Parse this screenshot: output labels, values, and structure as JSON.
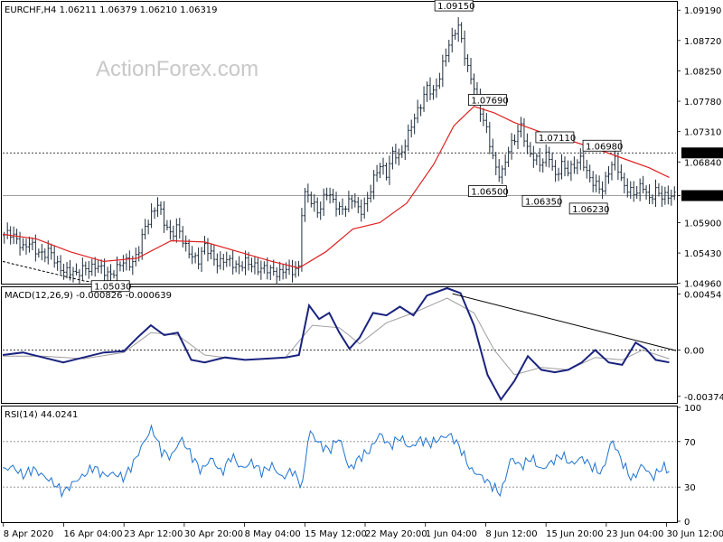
{
  "watermark": "ActionForex.com",
  "colors": {
    "price_bars": "#1e2d3d",
    "ma_line": "#e02020",
    "ma_long": "#000000",
    "macd_line": "#1a237e",
    "signal_line": "#9e9e9e",
    "rsi_line": "#1e73d0",
    "level_line": "#000000",
    "last_price_bg": "#000000",
    "last_price_fg": "#ffffff"
  },
  "chart_data": [
    {
      "panel": "price",
      "type": "ohlc",
      "header": "EURCHF,H4  1.06211 1.06379 1.06210 1.06319",
      "ylim": [
        1.0497,
        1.09305
      ],
      "y_ticks": [
        "1.09190",
        "1.08720",
        "1.08250",
        "1.07780",
        "1.07310",
        "1.06840",
        "1.06319",
        "1.05900",
        "1.05430",
        "1.04960"
      ],
      "level_lines": [
        1.0698,
        1.06319
      ],
      "level_labels": [
        "1.06980",
        "1.06319"
      ],
      "annotations": [
        {
          "text": "1.05030",
          "t": 0.16,
          "y": 1.0503
        },
        {
          "text": "1.09150",
          "t": 0.67,
          "y": 1.0915
        },
        {
          "text": "1.07690",
          "t": 0.72,
          "y": 1.0769
        },
        {
          "text": "1.06500",
          "t": 0.72,
          "y": 1.065
        },
        {
          "text": "1.06350",
          "t": 0.8,
          "y": 1.0635
        },
        {
          "text": "1.07110",
          "t": 0.82,
          "y": 1.0711
        },
        {
          "text": "1.06980",
          "t": 0.89,
          "y": 1.0698
        },
        {
          "text": "1.06230",
          "t": 0.87,
          "y": 1.0623
        }
      ],
      "close_path": [
        [
          0.0,
          1.057
        ],
        [
          0.01,
          1.0575
        ],
        [
          0.02,
          1.0565
        ],
        [
          0.03,
          1.055
        ],
        [
          0.04,
          1.056
        ],
        [
          0.05,
          1.0545
        ],
        [
          0.06,
          1.054
        ],
        [
          0.07,
          1.0548
        ],
        [
          0.08,
          1.0525
        ],
        [
          0.09,
          1.0515
        ],
        [
          0.1,
          1.0515
        ],
        [
          0.11,
          1.051
        ],
        [
          0.12,
          1.052
        ],
        [
          0.13,
          1.0518
        ],
        [
          0.14,
          1.0525
        ],
        [
          0.15,
          1.0515
        ],
        [
          0.16,
          1.0508
        ],
        [
          0.17,
          1.052
        ],
        [
          0.18,
          1.0532
        ],
        [
          0.19,
          1.0525
        ],
        [
          0.2,
          1.054
        ],
        [
          0.21,
          1.058
        ],
        [
          0.22,
          1.06
        ],
        [
          0.23,
          1.062
        ],
        [
          0.24,
          1.059
        ],
        [
          0.25,
          1.057
        ],
        [
          0.26,
          1.0585
        ],
        [
          0.27,
          1.0555
        ],
        [
          0.28,
          1.054
        ],
        [
          0.29,
          1.053
        ],
        [
          0.3,
          1.0555
        ],
        [
          0.31,
          1.054
        ],
        [
          0.32,
          1.0525
        ],
        [
          0.33,
          1.0535
        ],
        [
          0.34,
          1.0528
        ],
        [
          0.35,
          1.052
        ],
        [
          0.36,
          1.053
        ],
        [
          0.37,
          1.0525
        ],
        [
          0.38,
          1.0518
        ],
        [
          0.39,
          1.052
        ],
        [
          0.4,
          1.0515
        ],
        [
          0.41,
          1.051
        ],
        [
          0.42,
          1.052
        ],
        [
          0.43,
          1.0515
        ],
        [
          0.44,
          1.052
        ],
        [
          0.443,
          1.06
        ],
        [
          0.45,
          1.064
        ],
        [
          0.46,
          1.062
        ],
        [
          0.47,
          1.0605
        ],
        [
          0.48,
          1.064
        ],
        [
          0.49,
          1.0625
        ],
        [
          0.5,
          1.061
        ],
        [
          0.51,
          1.0615
        ],
        [
          0.52,
          1.063
        ],
        [
          0.53,
          1.0605
        ],
        [
          0.54,
          1.062
        ],
        [
          0.55,
          1.0655
        ],
        [
          0.56,
          1.068
        ],
        [
          0.57,
          1.0665
        ],
        [
          0.58,
          1.07
        ],
        [
          0.59,
          1.069
        ],
        [
          0.6,
          1.072
        ],
        [
          0.61,
          1.075
        ],
        [
          0.62,
          1.077
        ],
        [
          0.63,
          1.08
        ],
        [
          0.64,
          1.079
        ],
        [
          0.65,
          1.082
        ],
        [
          0.66,
          1.086
        ],
        [
          0.67,
          1.088
        ],
        [
          0.675,
          1.09
        ],
        [
          0.68,
          1.088
        ],
        [
          0.69,
          1.083
        ],
        [
          0.7,
          1.08
        ],
        [
          0.71,
          1.076
        ],
        [
          0.72,
          1.073
        ],
        [
          0.73,
          1.068
        ],
        [
          0.74,
          1.066
        ],
        [
          0.75,
          1.07
        ],
        [
          0.76,
          1.072
        ],
        [
          0.77,
          1.074
        ],
        [
          0.78,
          1.07
        ],
        [
          0.79,
          1.069
        ],
        [
          0.8,
          1.068
        ],
        [
          0.81,
          1.07
        ],
        [
          0.82,
          1.066
        ],
        [
          0.83,
          1.068
        ],
        [
          0.84,
          1.067
        ],
        [
          0.85,
          1.068
        ],
        [
          0.86,
          1.069
        ],
        [
          0.87,
          1.066
        ],
        [
          0.88,
          1.065
        ],
        [
          0.89,
          1.064
        ],
        [
          0.9,
          1.067
        ],
        [
          0.91,
          1.069
        ],
        [
          0.92,
          1.065
        ],
        [
          0.93,
          1.064
        ],
        [
          0.94,
          1.0635
        ],
        [
          0.95,
          1.065
        ],
        [
          0.96,
          1.0625
        ],
        [
          0.97,
          1.064
        ],
        [
          0.98,
          1.063
        ],
        [
          0.99,
          1.0632
        ]
      ],
      "ma_fast": [
        [
          0.0,
          1.0572
        ],
        [
          0.05,
          1.0565
        ],
        [
          0.1,
          1.0545
        ],
        [
          0.15,
          1.053
        ],
        [
          0.2,
          1.0535
        ],
        [
          0.25,
          1.0562
        ],
        [
          0.3,
          1.056
        ],
        [
          0.35,
          1.0545
        ],
        [
          0.4,
          1.053
        ],
        [
          0.44,
          1.052
        ],
        [
          0.48,
          1.0545
        ],
        [
          0.52,
          1.058
        ],
        [
          0.56,
          1.059
        ],
        [
          0.6,
          1.062
        ],
        [
          0.64,
          1.068
        ],
        [
          0.67,
          1.074
        ],
        [
          0.7,
          1.077
        ],
        [
          0.73,
          1.076
        ],
        [
          0.76,
          1.0745
        ],
        [
          0.8,
          1.073
        ],
        [
          0.84,
          1.0718
        ],
        [
          0.88,
          1.0705
        ],
        [
          0.92,
          1.069
        ],
        [
          0.96,
          1.0675
        ],
        [
          0.99,
          1.066
        ]
      ],
      "ma_slow": [
        [
          0.0,
          1.053
        ],
        [
          0.04,
          1.052
        ],
        [
          0.08,
          1.051
        ],
        [
          0.12,
          1.05
        ],
        [
          0.16,
          1.0495
        ]
      ]
    },
    {
      "panel": "macd",
      "type": "line",
      "header": "MACD(12,26,9) -0.000826 -0.000639",
      "ylim": [
        -0.0042,
        0.005
      ],
      "y_ticks": [
        "0.00454",
        "0.00",
        "-0.003745"
      ],
      "series": [
        {
          "values": [
            [
              0.0,
              -0.0004
            ],
            [
              0.03,
              -0.0002
            ],
            [
              0.06,
              -0.0006
            ],
            [
              0.09,
              -0.001
            ],
            [
              0.12,
              -0.0006
            ],
            [
              0.15,
              -0.0002
            ],
            [
              0.18,
              -0.0001
            ],
            [
              0.2,
              0.001
            ],
            [
              0.22,
              0.002
            ],
            [
              0.24,
              0.0012
            ],
            [
              0.26,
              0.0014
            ],
            [
              0.28,
              -0.0008
            ],
            [
              0.3,
              -0.001
            ],
            [
              0.33,
              -0.0006
            ],
            [
              0.36,
              -0.0008
            ],
            [
              0.39,
              -0.0007
            ],
            [
              0.42,
              -0.0006
            ],
            [
              0.44,
              -0.0004
            ],
            [
              0.455,
              0.0036
            ],
            [
              0.47,
              0.0025
            ],
            [
              0.485,
              0.003
            ],
            [
              0.5,
              0.0014
            ],
            [
              0.515,
              0.0001
            ],
            [
              0.53,
              0.001
            ],
            [
              0.55,
              0.003
            ],
            [
              0.57,
              0.0028
            ],
            [
              0.59,
              0.0035
            ],
            [
              0.61,
              0.0028
            ],
            [
              0.63,
              0.0044
            ],
            [
              0.66,
              0.005
            ],
            [
              0.68,
              0.0046
            ],
            [
              0.7,
              0.002
            ],
            [
              0.72,
              -0.002
            ],
            [
              0.74,
              -0.004
            ],
            [
              0.76,
              -0.0025
            ],
            [
              0.78,
              -0.0005
            ],
            [
              0.8,
              -0.0016
            ],
            [
              0.82,
              -0.0018
            ],
            [
              0.84,
              -0.0016
            ],
            [
              0.86,
              -0.001
            ],
            [
              0.88,
              0.0
            ],
            [
              0.9,
              -0.001
            ],
            [
              0.92,
              -0.0012
            ],
            [
              0.94,
              0.0006
            ],
            [
              0.955,
              0.0001
            ],
            [
              0.97,
              -0.0008
            ],
            [
              0.99,
              -0.001
            ]
          ]
        },
        {
          "values": [
            [
              0.0,
              -0.0005
            ],
            [
              0.06,
              -0.0005
            ],
            [
              0.12,
              -0.0007
            ],
            [
              0.18,
              -0.0002
            ],
            [
              0.22,
              0.0014
            ],
            [
              0.26,
              0.0012
            ],
            [
              0.3,
              -0.0004
            ],
            [
              0.36,
              -0.0008
            ],
            [
              0.42,
              -0.0006
            ],
            [
              0.46,
              0.002
            ],
            [
              0.5,
              0.0018
            ],
            [
              0.53,
              0.0005
            ],
            [
              0.57,
              0.0022
            ],
            [
              0.61,
              0.003
            ],
            [
              0.66,
              0.0042
            ],
            [
              0.7,
              0.003
            ],
            [
              0.73,
              0.0
            ],
            [
              0.76,
              -0.002
            ],
            [
              0.8,
              -0.0014
            ],
            [
              0.84,
              -0.0016
            ],
            [
              0.88,
              -0.0006
            ],
            [
              0.92,
              -0.0008
            ],
            [
              0.95,
              0.0
            ],
            [
              0.99,
              -0.0007
            ]
          ]
        }
      ],
      "trendline": [
        [
          0.668,
          0.00455
        ],
        [
          1.0,
          -5e-05
        ]
      ]
    },
    {
      "panel": "rsi",
      "type": "line",
      "header": "RSI(14) 44.0241",
      "ylim": [
        0,
        100
      ],
      "y_ticks": [
        "100",
        "70",
        "30",
        "0"
      ],
      "levels": [
        70,
        30
      ],
      "series": [
        {
          "values": [
            [
              0.0,
              45
            ],
            [
              0.015,
              48
            ],
            [
              0.03,
              40
            ],
            [
              0.045,
              46
            ],
            [
              0.06,
              40
            ],
            [
              0.075,
              34
            ],
            [
              0.09,
              25
            ],
            [
              0.105,
              34
            ],
            [
              0.12,
              40
            ],
            [
              0.135,
              48
            ],
            [
              0.15,
              40
            ],
            [
              0.165,
              42
            ],
            [
              0.18,
              38
            ],
            [
              0.195,
              52
            ],
            [
              0.21,
              70
            ],
            [
              0.222,
              82
            ],
            [
              0.235,
              62
            ],
            [
              0.25,
              56
            ],
            [
              0.265,
              73
            ],
            [
              0.28,
              58
            ],
            [
              0.295,
              44
            ],
            [
              0.31,
              56
            ],
            [
              0.325,
              42
            ],
            [
              0.34,
              58
            ],
            [
              0.355,
              46
            ],
            [
              0.37,
              52
            ],
            [
              0.385,
              43
            ],
            [
              0.4,
              49
            ],
            [
              0.415,
              38
            ],
            [
              0.43,
              45
            ],
            [
              0.445,
              30
            ],
            [
              0.455,
              80
            ],
            [
              0.47,
              68
            ],
            [
              0.485,
              62
            ],
            [
              0.5,
              74
            ],
            [
              0.515,
              45
            ],
            [
              0.53,
              56
            ],
            [
              0.545,
              62
            ],
            [
              0.56,
              77
            ],
            [
              0.575,
              66
            ],
            [
              0.59,
              74
            ],
            [
              0.605,
              64
            ],
            [
              0.62,
              72
            ],
            [
              0.635,
              68
            ],
            [
              0.65,
              73
            ],
            [
              0.665,
              76
            ],
            [
              0.68,
              64
            ],
            [
              0.695,
              45
            ],
            [
              0.71,
              40
            ],
            [
              0.725,
              32
            ],
            [
              0.74,
              24
            ],
            [
              0.755,
              56
            ],
            [
              0.77,
              48
            ],
            [
              0.785,
              56
            ],
            [
              0.8,
              45
            ],
            [
              0.815,
              52
            ],
            [
              0.83,
              58
            ],
            [
              0.845,
              50
            ],
            [
              0.86,
              56
            ],
            [
              0.875,
              48
            ],
            [
              0.89,
              42
            ],
            [
              0.905,
              72
            ],
            [
              0.92,
              52
            ],
            [
              0.935,
              36
            ],
            [
              0.95,
              50
            ],
            [
              0.965,
              38
            ],
            [
              0.98,
              48
            ],
            [
              0.99,
              44
            ]
          ]
        }
      ]
    },
    {
      "panel": "x_axis",
      "x_ticks": [
        "8 Apr 2020",
        "16 Apr 04:00",
        "23 Apr 12:00",
        "30 Apr 20:00",
        "8 May 04:00",
        "15 May 12:00",
        "22 May 20:00",
        "1 Jun 04:00",
        "8 Jun 12:00",
        "15 Jun 20:00",
        "23 Jun 04:00",
        "30 Jun 12:00"
      ]
    }
  ]
}
